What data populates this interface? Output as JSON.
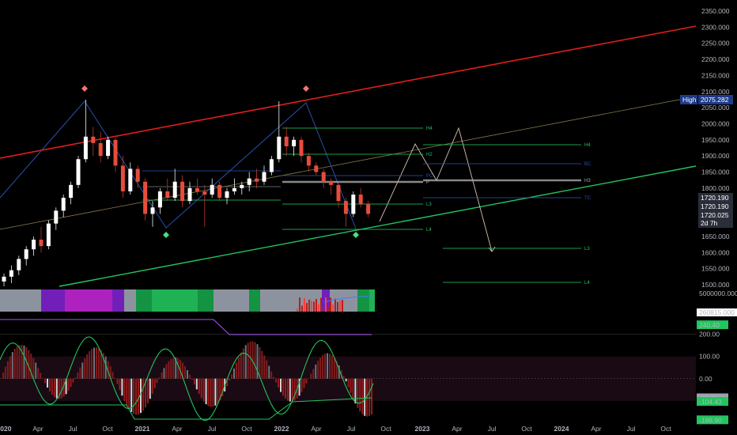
{
  "chart_data": [
    {
      "type": "candlestick",
      "title": "",
      "y_axis_ticks": [
        "2350.000",
        "2300.000",
        "2250.000",
        "2200.000",
        "2150.000",
        "2100.000",
        "2050.000",
        "2000.000",
        "1950.000",
        "1900.000",
        "1850.000",
        "1800.000",
        "1750.000",
        "1700.000",
        "1650.000",
        "1600.000",
        "1550.000",
        "1500.000"
      ],
      "ylim": [
        1500,
        2350
      ],
      "x_axis_ticks": [
        "2020",
        "Apr",
        "Jul",
        "Oct",
        "2021",
        "Apr",
        "Jul",
        "Oct",
        "2022",
        "Apr",
        "Jul",
        "Oct",
        "2023",
        "Apr",
        "Jul",
        "Oct",
        "2024",
        "Apr",
        "Jul",
        "Oct"
      ],
      "price_tags": [
        {
          "label": "High",
          "value": "2075.282",
          "color": "#1e3a8a"
        },
        {
          "label": "",
          "value": "1720.190",
          "color": "#2a2e39"
        },
        {
          "label": "",
          "value": "1720.190",
          "color": "#2a2e39"
        },
        {
          "label": "",
          "value": "1720.025",
          "color": "#2a2e39"
        },
        {
          "label": "",
          "value": "2d 7h",
          "color": "#2a2e39"
        }
      ],
      "level_labels": [
        "H4",
        "H3",
        "H2",
        "PC",
        "P",
        "TC",
        "L3",
        "L4",
        "H4",
        "H3",
        "BC",
        "P",
        "TC",
        "L3",
        "L4",
        "F",
        "P"
      ],
      "price_series": [
        {
          "t": 0,
          "o": 1510,
          "h": 1535,
          "l": 1495,
          "c": 1525
        },
        {
          "t": 1,
          "o": 1525,
          "h": 1560,
          "l": 1505,
          "c": 1545
        },
        {
          "t": 2,
          "o": 1545,
          "h": 1590,
          "l": 1530,
          "c": 1580
        },
        {
          "t": 3,
          "o": 1580,
          "h": 1620,
          "l": 1560,
          "c": 1610
        },
        {
          "t": 4,
          "o": 1610,
          "h": 1650,
          "l": 1590,
          "c": 1640
        },
        {
          "t": 5,
          "o": 1640,
          "h": 1680,
          "l": 1600,
          "c": 1620
        },
        {
          "t": 6,
          "o": 1620,
          "h": 1700,
          "l": 1610,
          "c": 1690
        },
        {
          "t": 7,
          "o": 1690,
          "h": 1740,
          "l": 1670,
          "c": 1730
        },
        {
          "t": 8,
          "o": 1730,
          "h": 1780,
          "l": 1710,
          "c": 1770
        },
        {
          "t": 9,
          "o": 1770,
          "h": 1820,
          "l": 1750,
          "c": 1810
        },
        {
          "t": 10,
          "o": 1810,
          "h": 1900,
          "l": 1800,
          "c": 1890
        },
        {
          "t": 11,
          "o": 1890,
          "h": 2075,
          "l": 1880,
          "c": 1960
        },
        {
          "t": 12,
          "o": 1960,
          "h": 1990,
          "l": 1900,
          "c": 1940
        },
        {
          "t": 13,
          "o": 1940,
          "h": 1975,
          "l": 1880,
          "c": 1900
        },
        {
          "t": 14,
          "o": 1900,
          "h": 1960,
          "l": 1890,
          "c": 1950
        },
        {
          "t": 15,
          "o": 1950,
          "h": 1955,
          "l": 1850,
          "c": 1870
        },
        {
          "t": 16,
          "o": 1870,
          "h": 1900,
          "l": 1770,
          "c": 1790
        },
        {
          "t": 17,
          "o": 1790,
          "h": 1880,
          "l": 1780,
          "c": 1860
        },
        {
          "t": 18,
          "o": 1860,
          "h": 1870,
          "l": 1800,
          "c": 1820
        },
        {
          "t": 19,
          "o": 1820,
          "h": 1830,
          "l": 1700,
          "c": 1720
        },
        {
          "t": 20,
          "o": 1720,
          "h": 1760,
          "l": 1680,
          "c": 1740
        },
        {
          "t": 21,
          "o": 1740,
          "h": 1800,
          "l": 1720,
          "c": 1790
        },
        {
          "t": 22,
          "o": 1790,
          "h": 1830,
          "l": 1760,
          "c": 1770
        },
        {
          "t": 23,
          "o": 1770,
          "h": 1860,
          "l": 1760,
          "c": 1820
        },
        {
          "t": 24,
          "o": 1820,
          "h": 1840,
          "l": 1740,
          "c": 1760
        },
        {
          "t": 25,
          "o": 1760,
          "h": 1820,
          "l": 1750,
          "c": 1800
        },
        {
          "t": 26,
          "o": 1800,
          "h": 1830,
          "l": 1780,
          "c": 1790
        },
        {
          "t": 27,
          "o": 1790,
          "h": 1810,
          "l": 1680,
          "c": 1780
        },
        {
          "t": 28,
          "o": 1780,
          "h": 1830,
          "l": 1770,
          "c": 1810
        },
        {
          "t": 29,
          "o": 1810,
          "h": 1820,
          "l": 1760,
          "c": 1770
        },
        {
          "t": 30,
          "o": 1770,
          "h": 1800,
          "l": 1750,
          "c": 1790
        },
        {
          "t": 31,
          "o": 1790,
          "h": 1830,
          "l": 1780,
          "c": 1800
        },
        {
          "t": 32,
          "o": 1800,
          "h": 1820,
          "l": 1780,
          "c": 1810
        },
        {
          "t": 33,
          "o": 1810,
          "h": 1850,
          "l": 1790,
          "c": 1830
        },
        {
          "t": 34,
          "o": 1830,
          "h": 1860,
          "l": 1800,
          "c": 1820
        },
        {
          "t": 35,
          "o": 1820,
          "h": 1870,
          "l": 1810,
          "c": 1850
        },
        {
          "t": 36,
          "o": 1850,
          "h": 1900,
          "l": 1840,
          "c": 1890
        },
        {
          "t": 37,
          "o": 1890,
          "h": 2070,
          "l": 1880,
          "c": 1960
        },
        {
          "t": 38,
          "o": 1960,
          "h": 1990,
          "l": 1900,
          "c": 1930
        },
        {
          "t": 39,
          "o": 1930,
          "h": 1960,
          "l": 1900,
          "c": 1950
        },
        {
          "t": 40,
          "o": 1950,
          "h": 1960,
          "l": 1880,
          "c": 1900
        },
        {
          "t": 41,
          "o": 1900,
          "h": 1910,
          "l": 1850,
          "c": 1870
        },
        {
          "t": 42,
          "o": 1870,
          "h": 1880,
          "l": 1840,
          "c": 1850
        },
        {
          "t": 43,
          "o": 1850,
          "h": 1860,
          "l": 1800,
          "c": 1820
        },
        {
          "t": 44,
          "o": 1820,
          "h": 1830,
          "l": 1780,
          "c": 1810
        },
        {
          "t": 45,
          "o": 1810,
          "h": 1815,
          "l": 1740,
          "c": 1760
        },
        {
          "t": 46,
          "o": 1760,
          "h": 1770,
          "l": 1680,
          "c": 1720
        },
        {
          "t": 47,
          "o": 1720,
          "h": 1790,
          "l": 1710,
          "c": 1780
        },
        {
          "t": 48,
          "o": 1780,
          "h": 1800,
          "l": 1740,
          "c": 1750
        },
        {
          "t": 49,
          "o": 1750,
          "h": 1760,
          "l": 1710,
          "c": 1720
        }
      ]
    },
    {
      "type": "histogram",
      "title": "",
      "y_axis_ticks": [
        "5000000.000",
        "260815.000"
      ]
    },
    {
      "type": "line",
      "title": "",
      "y_axis_ticks": [
        "240.40",
        "200.00",
        "100.00",
        "0.00",
        "-87.88",
        "-104.43",
        "-186.90"
      ],
      "ylim": [
        -200,
        280
      ]
    }
  ]
}
